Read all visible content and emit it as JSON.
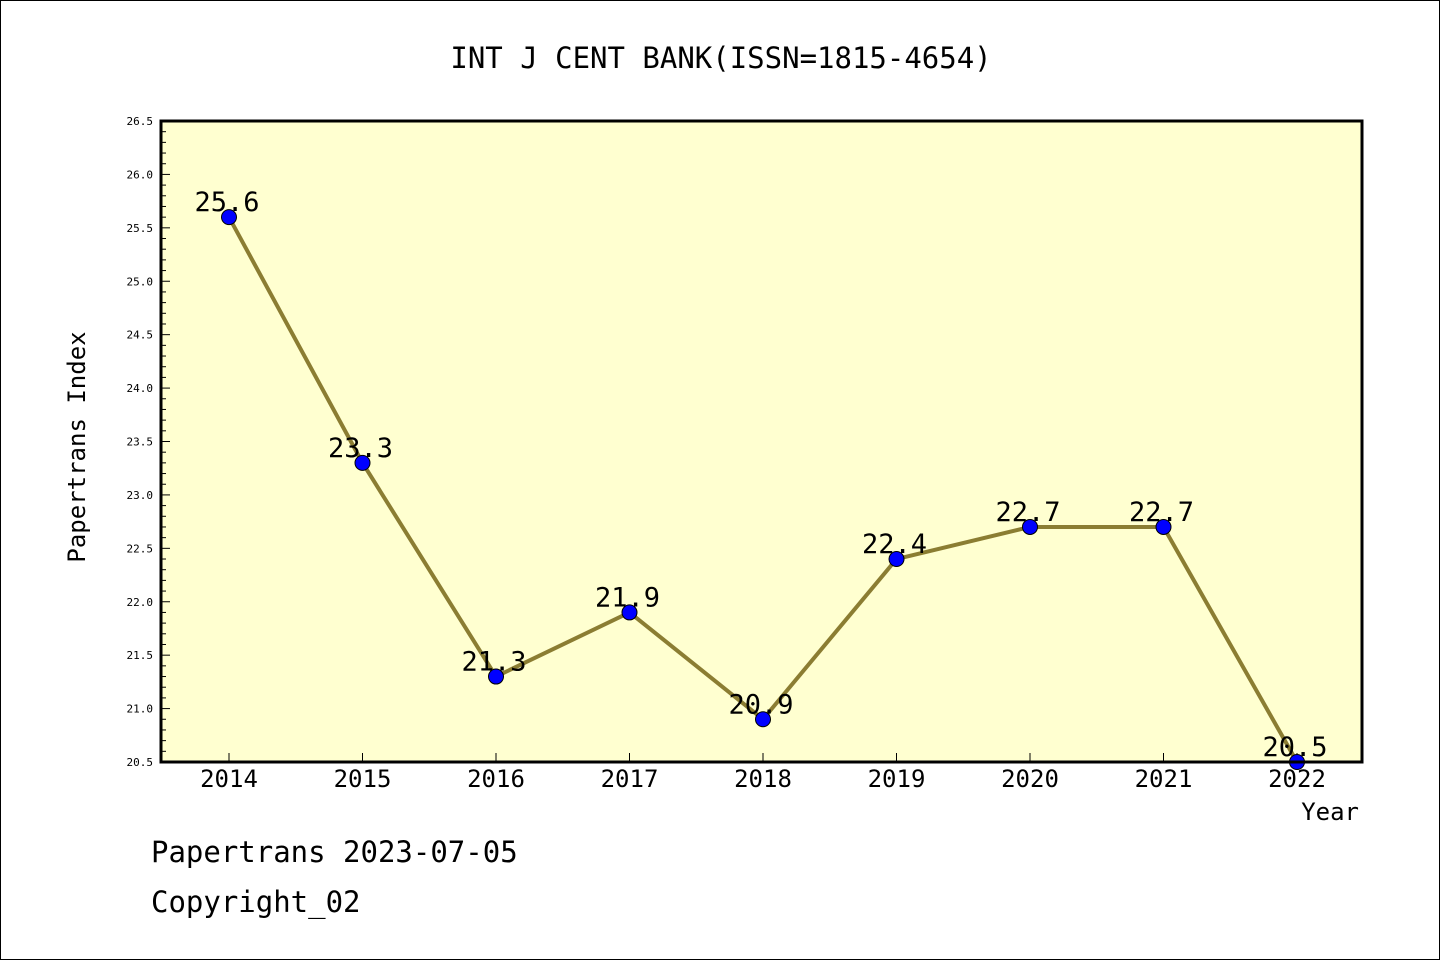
{
  "chart_data": {
    "type": "line",
    "title": "INT J CENT BANK(ISSN=1815-4654)",
    "xlabel": "Year",
    "ylabel": "Papertrans Index",
    "categories": [
      "2014",
      "2015",
      "2016",
      "2017",
      "2018",
      "2019",
      "2020",
      "2021",
      "2022"
    ],
    "series": [
      {
        "values": [
          25.6,
          23.3,
          21.3,
          21.9,
          20.9,
          22.4,
          22.7,
          22.7,
          20.5
        ],
        "labels": [
          "25.6",
          "23.3",
          "21.3",
          "21.9",
          "20.9",
          "22.4",
          "22.7",
          "22.7",
          "20.5"
        ]
      }
    ],
    "ylim": [
      20.5,
      26.5
    ],
    "yticks": [
      20.5,
      21.0,
      21.5,
      22.0,
      22.5,
      23.0,
      23.5,
      24.0,
      24.5,
      25.0,
      25.5,
      26.0,
      26.5
    ],
    "ytick_labels": [
      "20.5",
      "21.0",
      "21.5",
      "22.0",
      "22.5",
      "23.0",
      "23.5",
      "24.0",
      "24.5",
      "25.0",
      "25.5",
      "26.0",
      "26.5"
    ],
    "grid": false,
    "legend": "none",
    "colors": {
      "line": "#8B7D32",
      "marker": "#0000FF",
      "plot_background": "#FFFFD0",
      "axes": "#000000"
    }
  },
  "footer": {
    "line1": "Papertrans 2023-07-05",
    "line2": "Copyright_02"
  }
}
